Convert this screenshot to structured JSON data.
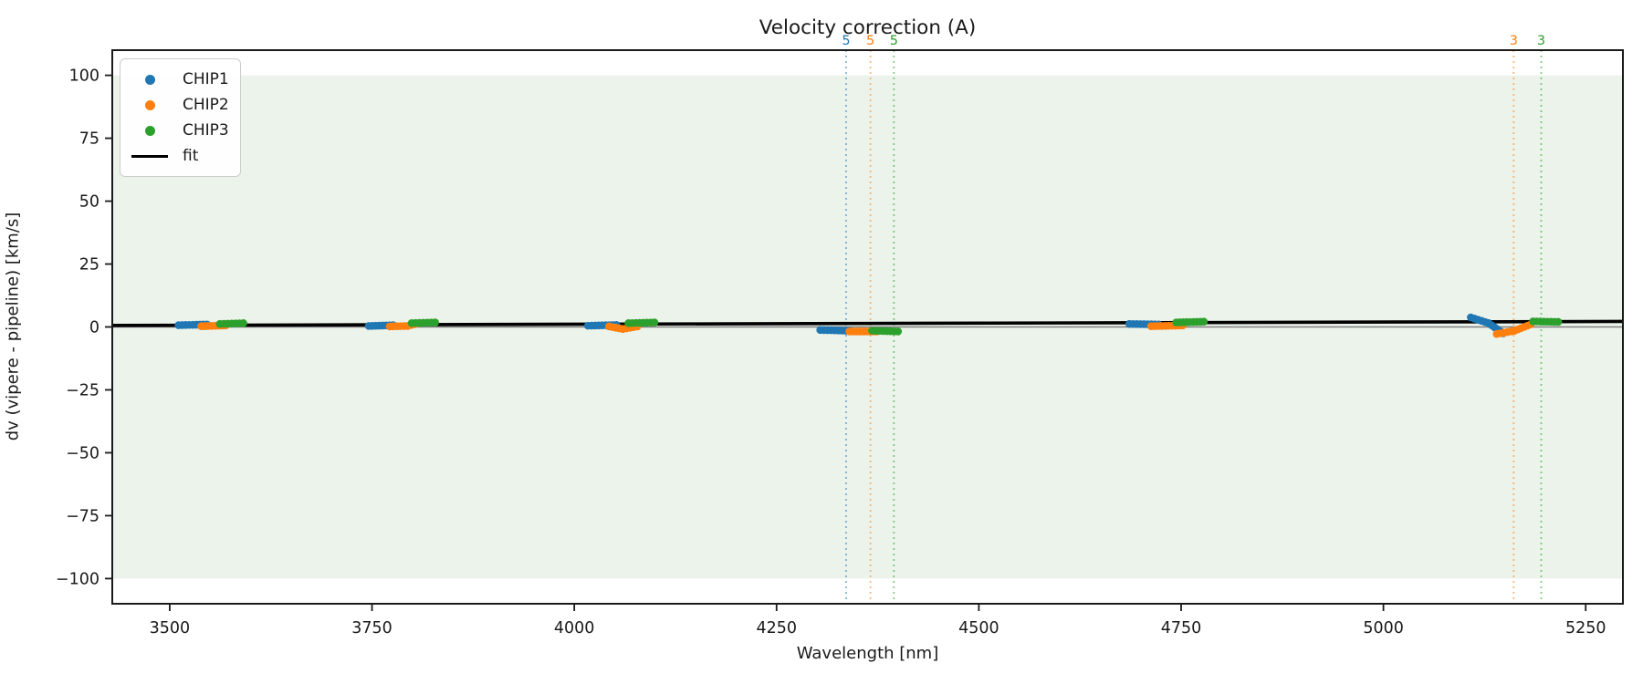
{
  "chart_data": {
    "type": "scatter",
    "title": "Velocity correction (A)",
    "xlabel": "Wavelength [nm]",
    "ylabel": "dv (vipere - pipeline) [km/s]",
    "xlim": [
      3429,
      5296
    ],
    "ylim": [
      -110,
      110
    ],
    "x_ticks": [
      3500,
      3750,
      4000,
      4250,
      4500,
      4750,
      5000,
      5250
    ],
    "y_ticks": [
      -100,
      -75,
      -50,
      -25,
      0,
      25,
      50,
      75,
      100
    ],
    "grid": false,
    "shaded_band": {
      "y_min": -100,
      "y_max": 100,
      "color": "#ebf3eb"
    },
    "zero_line": {
      "y": 0,
      "color": "#7f7f7f"
    },
    "fit": {
      "name": "fit",
      "color": "#000000",
      "points": [
        [
          3429,
          0.6
        ],
        [
          5296,
          2.2
        ]
      ]
    },
    "series": [
      {
        "name": "CHIP1",
        "color": "#1f77b4",
        "segments": [
          [
            [
              3511,
              0.7
            ],
            [
              3546,
              1.0
            ]
          ],
          [
            [
              3746,
              0.4
            ],
            [
              3776,
              0.7
            ]
          ],
          [
            [
              4017,
              0.5
            ],
            [
              4052,
              0.8
            ]
          ],
          [
            [
              4304,
              -1.2
            ],
            [
              4340,
              -1.5
            ]
          ],
          [
            [
              4686,
              1.2
            ],
            [
              4722,
              1.0
            ]
          ],
          [
            [
              5108,
              3.8
            ],
            [
              5130,
              1.5
            ],
            [
              5148,
              -2.5
            ]
          ]
        ]
      },
      {
        "name": "CHIP2",
        "color": "#ff7f0e",
        "segments": [
          [
            [
              3539,
              0.3
            ],
            [
              3569,
              0.6
            ]
          ],
          [
            [
              3772,
              0.2
            ],
            [
              3794,
              0.4
            ],
            [
              3806,
              1.4
            ]
          ],
          [
            [
              4043,
              0.2
            ],
            [
              4060,
              -0.8
            ],
            [
              4078,
              0.2
            ]
          ],
          [
            [
              4340,
              -1.8
            ],
            [
              4374,
              -1.8
            ]
          ],
          [
            [
              4713,
              0.3
            ],
            [
              4752,
              0.6
            ]
          ],
          [
            [
              5140,
              -2.8
            ],
            [
              5162,
              -1.5
            ],
            [
              5182,
              1.0
            ]
          ]
        ]
      },
      {
        "name": "CHIP3",
        "color": "#2ca02c",
        "segments": [
          [
            [
              3562,
              1.2
            ],
            [
              3591,
              1.5
            ]
          ],
          [
            [
              3799,
              1.5
            ],
            [
              3828,
              1.8
            ]
          ],
          [
            [
              4067,
              1.5
            ],
            [
              4099,
              1.8
            ]
          ],
          [
            [
              4368,
              -1.5
            ],
            [
              4400,
              -1.8
            ]
          ],
          [
            [
              4744,
              1.8
            ],
            [
              4778,
              2.1
            ]
          ],
          [
            [
              5185,
              2.2
            ],
            [
              5216,
              2.0
            ]
          ]
        ]
      }
    ],
    "vlines": [
      {
        "x": 4336,
        "label": "5",
        "color": "#1f77b4"
      },
      {
        "x": 4366,
        "label": "5",
        "color": "#ff7f0e"
      },
      {
        "x": 4395,
        "label": "5",
        "color": "#2ca02c"
      },
      {
        "x": 5161,
        "label": "3",
        "color": "#ff7f0e"
      },
      {
        "x": 5195,
        "label": "3",
        "color": "#2ca02c"
      }
    ],
    "legend": {
      "position": "upper-left",
      "entries": [
        {
          "label": "CHIP1",
          "marker": "dot",
          "color": "#1f77b4"
        },
        {
          "label": "CHIP2",
          "marker": "dot",
          "color": "#ff7f0e"
        },
        {
          "label": "CHIP3",
          "marker": "dot",
          "color": "#2ca02c"
        },
        {
          "label": "fit",
          "marker": "line",
          "color": "#000000"
        }
      ]
    }
  }
}
